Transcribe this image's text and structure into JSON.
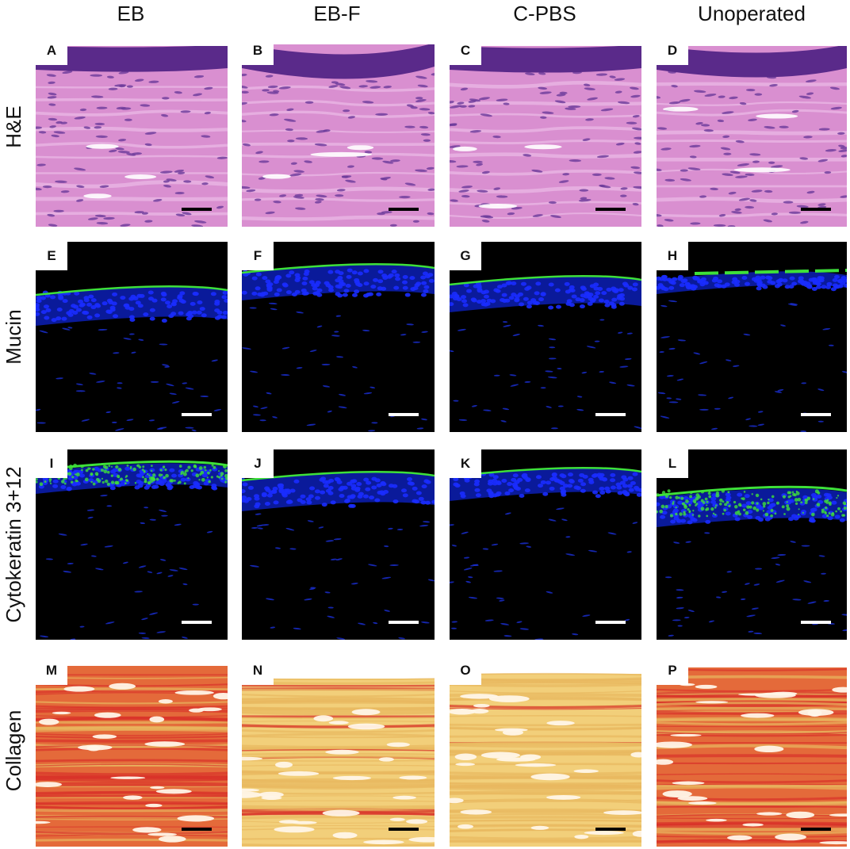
{
  "columns": [
    "EB",
    "EB-F",
    "C-PBS",
    "Unoperated"
  ],
  "rows": [
    "H&E",
    "Mucin",
    "Cytokeratin 3+12",
    "Collagen"
  ],
  "panels": [
    [
      "A",
      "B",
      "C",
      "D"
    ],
    [
      "E",
      "F",
      "G",
      "H"
    ],
    [
      "I",
      "J",
      "K",
      "L"
    ],
    [
      "M",
      "N",
      "O",
      "P"
    ]
  ],
  "colors": {
    "he_stroma": "#d98fd0",
    "he_epithelium": "#5a2a8a",
    "fluor_background": "#000000",
    "fluor_nuclei": "#1a2cff",
    "fluor_green": "#3ee03a",
    "collagen_red": "#d8322a",
    "collagen_yellow": "#f2cf7a",
    "scalebar_dark": "#000000",
    "scalebar_light": "#ffffff"
  }
}
